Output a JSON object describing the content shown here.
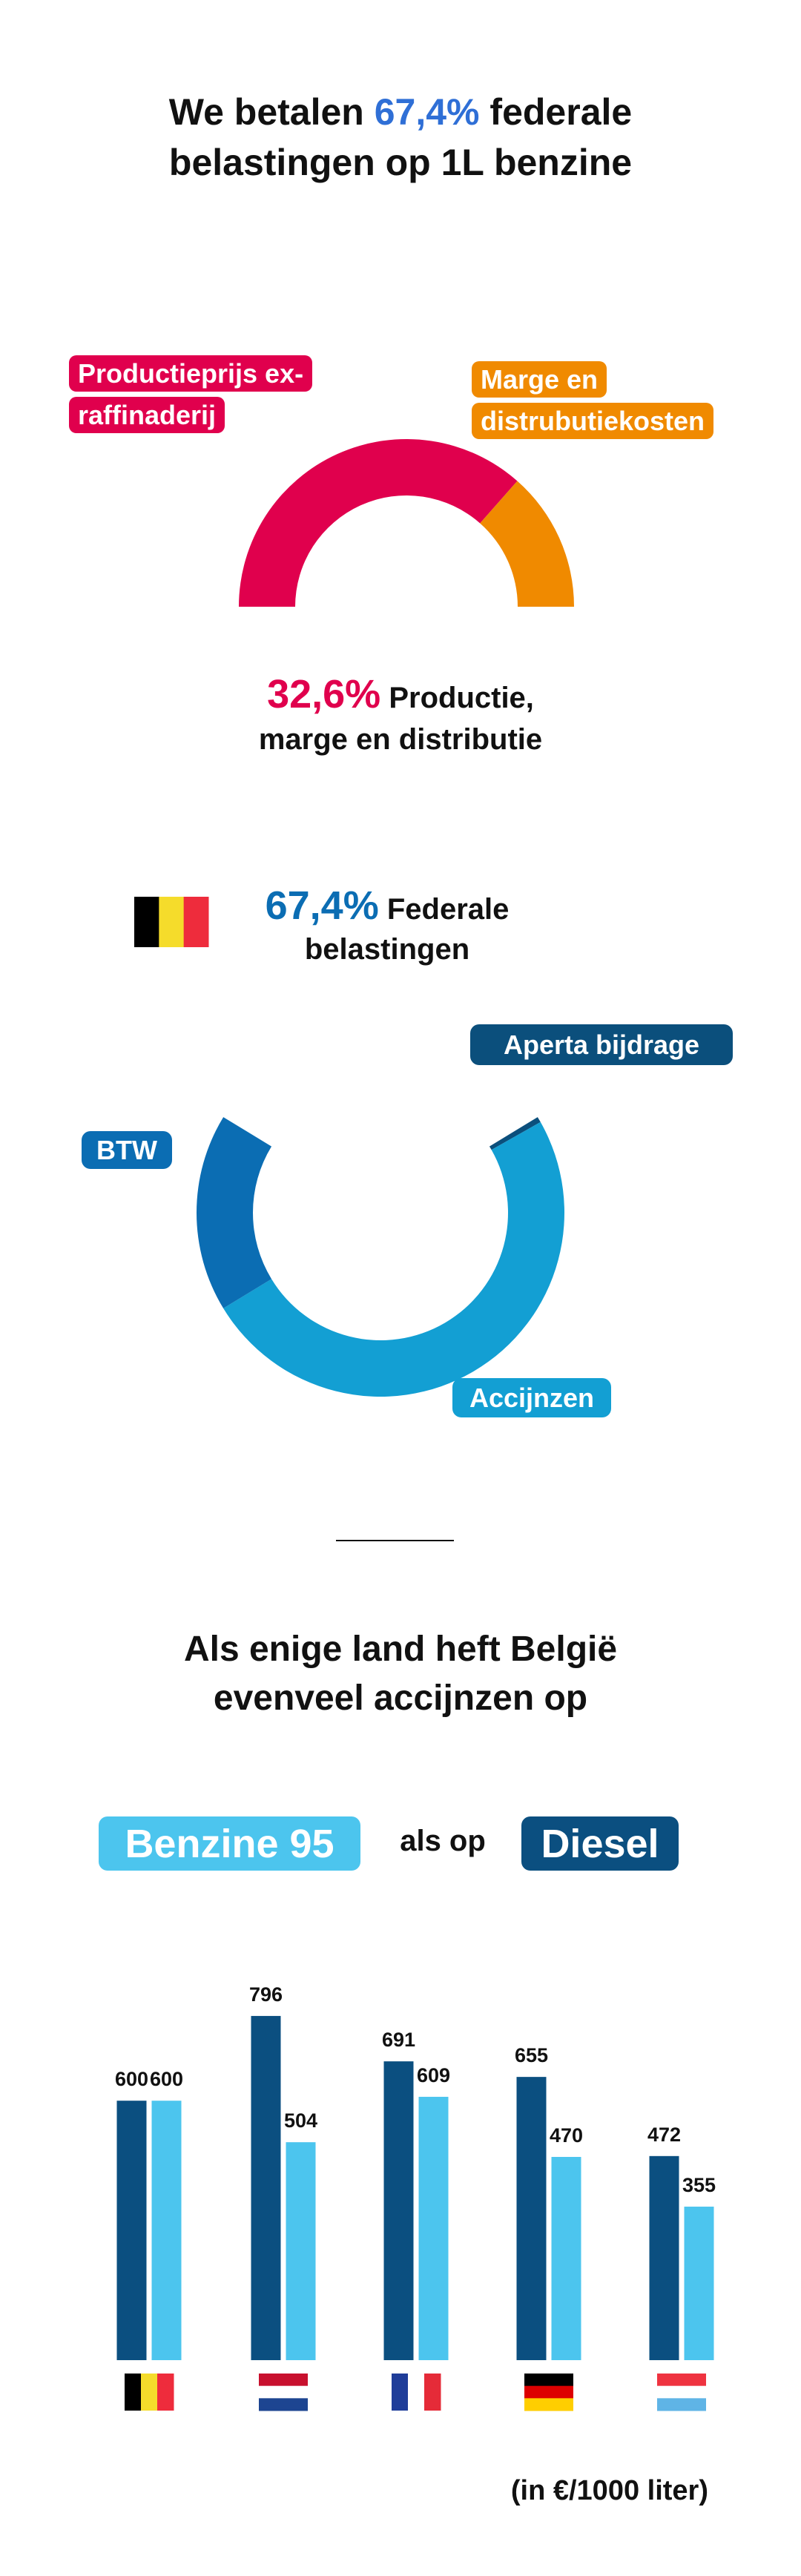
{
  "headline": [
    "We betalen",
    "67,4%",
    "federale",
    "belastingen op 1L benzine"
  ],
  "chart_data": [
    {
      "type": "semi-donut",
      "categories": [
        "Productieprijs ex-raffinaderij",
        "Marge en distrubutiekosten"
      ],
      "values": [
        23.8,
        8.8
      ],
      "colors": [
        "#e0004d",
        "#f08a00"
      ],
      "total_label": "32,6%",
      "caption": [
        "Productie,",
        "marge en distributie"
      ]
    },
    {
      "type": "ring",
      "categories": [
        "Aperta bijdrage",
        "Accijnzen",
        "BTW"
      ],
      "values": [
        0.5,
        49.5,
        17.4
      ],
      "colors": [
        "#0b4f7c",
        "#139fd3",
        "#0b6db3"
      ],
      "total_label": "67,4%",
      "caption": [
        "Federale",
        "belastingen"
      ]
    },
    {
      "type": "bar",
      "title": [
        "Als enige land heft België",
        "evenveel accijnzen op"
      ],
      "legend_joiner": "als op",
      "categories": [
        null,
        null,
        null,
        null,
        null
      ],
      "series": [
        {
          "name": "Benzine 95",
          "color": "#4cc5ee",
          "values": [
            600,
            504,
            609,
            470,
            355
          ]
        },
        {
          "name": "Diesel",
          "color": "#0b4f80",
          "values": [
            600,
            796,
            691,
            655,
            472
          ]
        }
      ],
      "note": "(in €/1000 liter)"
    }
  ]
}
